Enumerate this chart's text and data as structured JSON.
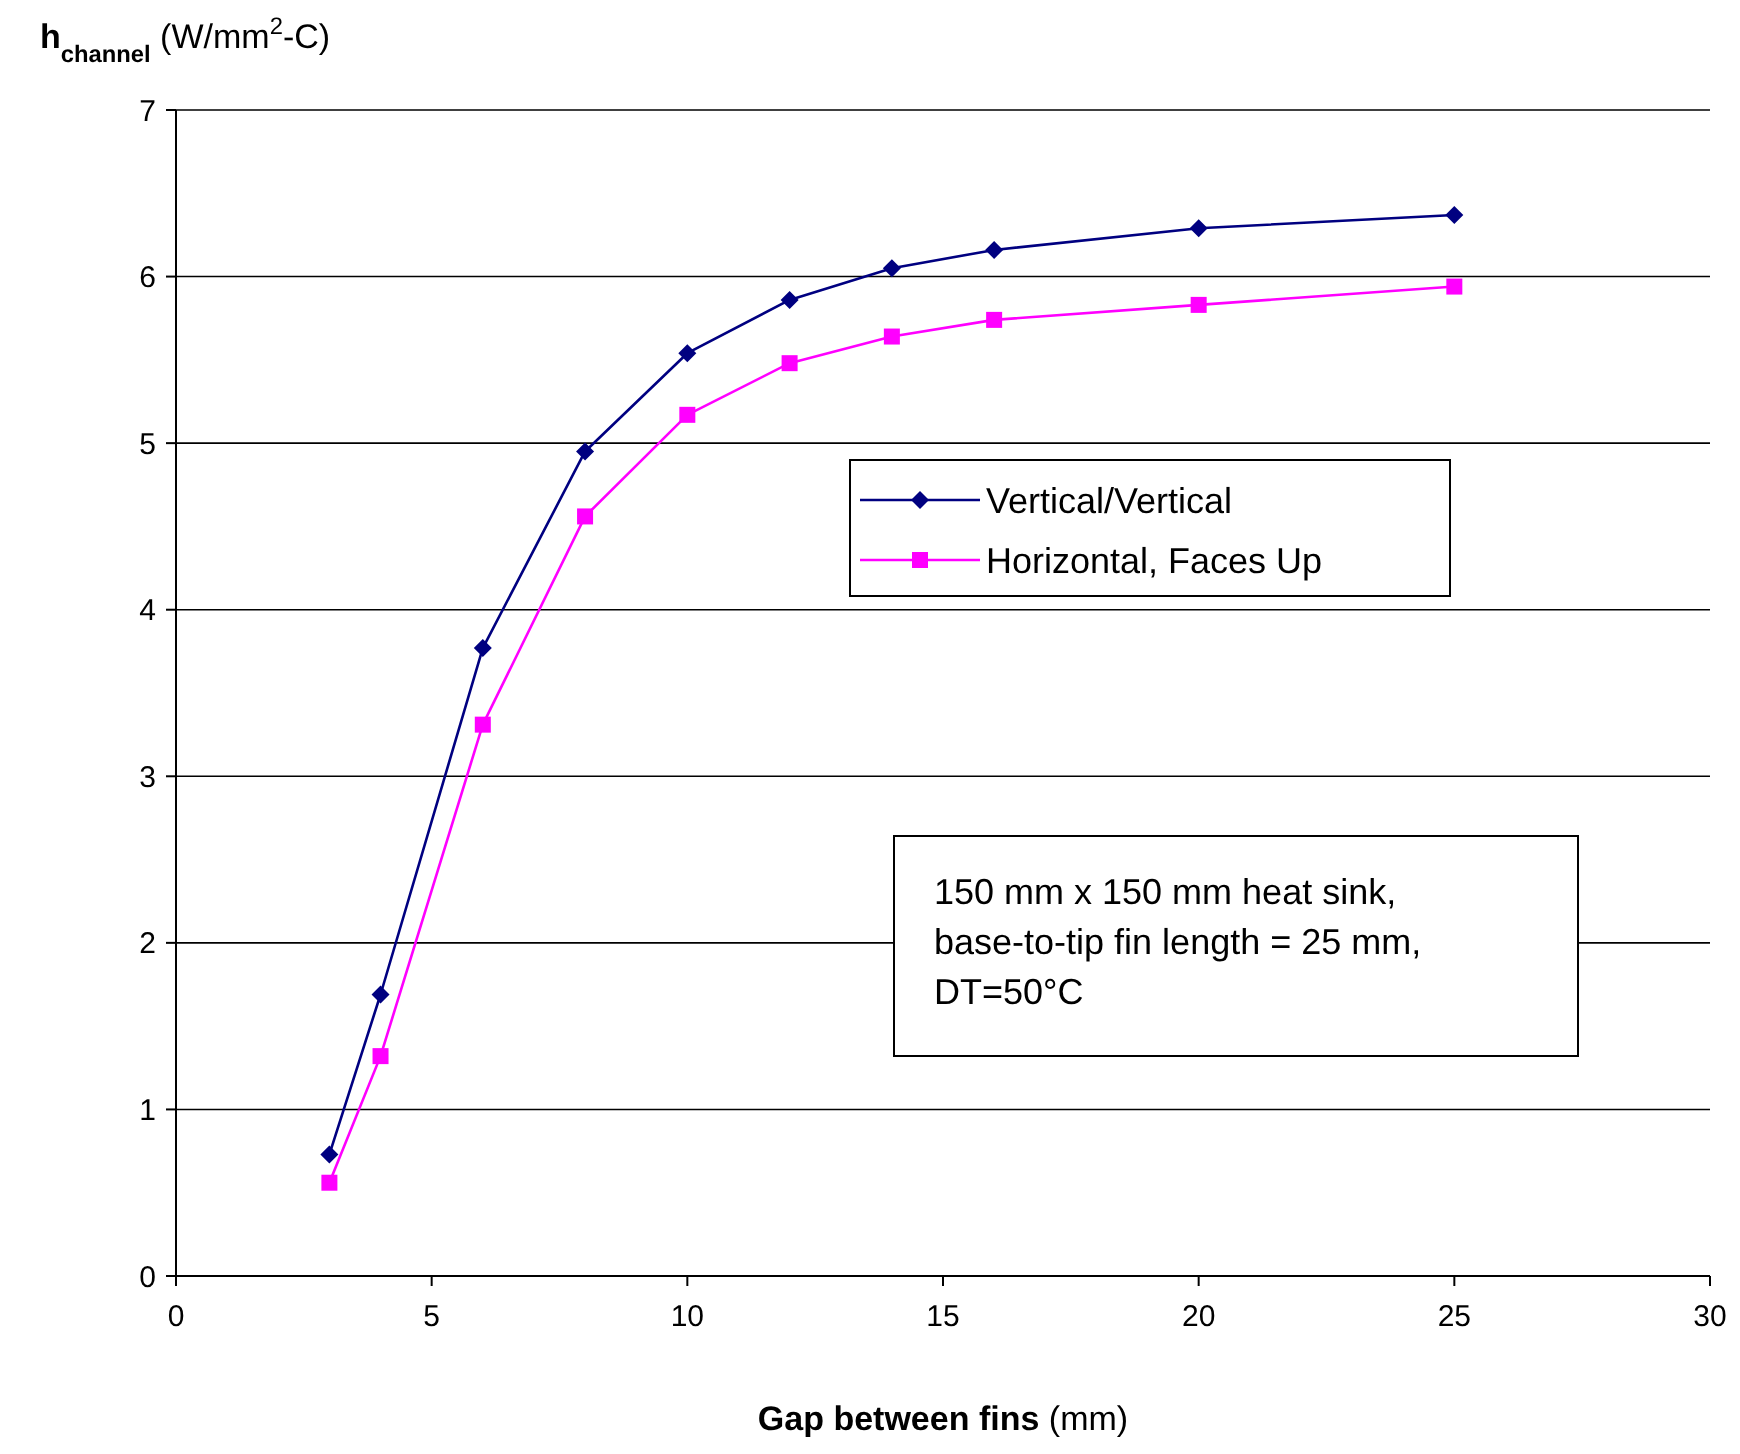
{
  "chart_data": {
    "type": "line",
    "xlabel": "Gap between fins (mm)",
    "ylabel": "h$_{channel}$ (W/mm$^{2}$-C)",
    "x": [
      3,
      4,
      6,
      8,
      10,
      12,
      14,
      16,
      20,
      25
    ],
    "series": [
      {
        "name": "Vertical/Vertical",
        "color": "#000080",
        "marker": "diamond",
        "values": [
          0.73,
          1.69,
          3.77,
          4.95,
          5.54,
          5.86,
          6.05,
          6.16,
          6.29,
          6.37
        ]
      },
      {
        "name": "Horizontal, Faces Up",
        "color": "#ff00ff",
        "marker": "square",
        "values": [
          0.56,
          1.32,
          3.31,
          4.56,
          5.17,
          5.48,
          5.64,
          5.74,
          5.83,
          5.94
        ]
      }
    ],
    "xlim": [
      0,
      30
    ],
    "xticks": [
      0,
      5,
      10,
      15,
      20,
      25,
      30
    ],
    "ylim": [
      0,
      7
    ],
    "yticks": [
      0,
      1,
      2,
      3,
      4,
      5,
      6,
      7
    ],
    "grid": "y",
    "legend": "center right",
    "line_style": "solid",
    "annotations": [
      "150 mm x 150 mm heat sink,\nbase-to-tip fin length = 25 mm,\nDT=50°C"
    ]
  }
}
